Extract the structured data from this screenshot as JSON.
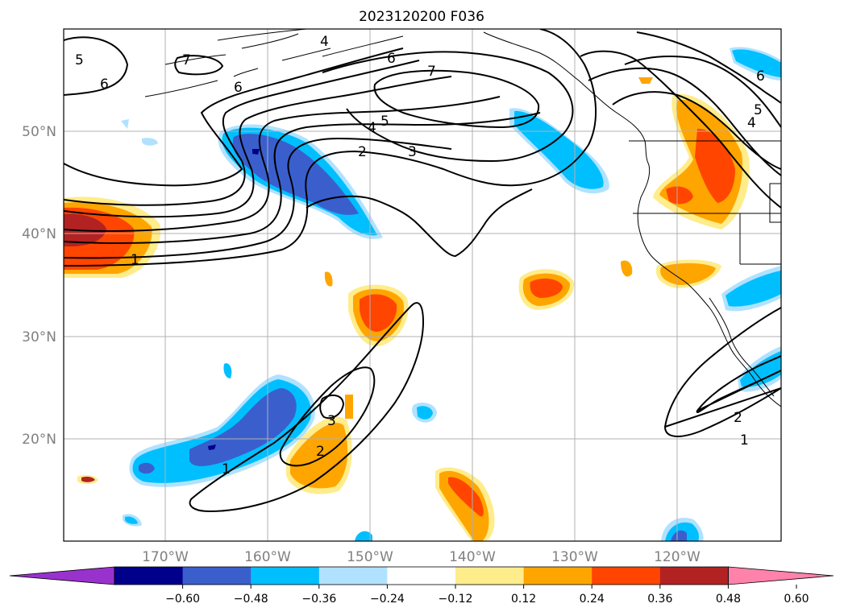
{
  "title": "2023120200 F036",
  "lat_labels": [
    "50°N",
    "40°N",
    "30°N",
    "20°N"
  ],
  "lon_labels": [
    "170°W",
    "160°W",
    "150°W",
    "140°W",
    "130°W",
    "120°W"
  ],
  "colorbar": {
    "tick_labels": [
      "−0.60",
      "−0.48",
      "−0.36",
      "−0.24",
      "−0.12",
      "0.12",
      "0.24",
      "0.36",
      "0.48",
      "0.60"
    ],
    "colors": [
      "#9932cc",
      "#00008b",
      "#3a5fcd",
      "#00bfff",
      "#b0e2ff",
      "#ffffff",
      "#ffec8b",
      "#ffa500",
      "#ff4500",
      "#b22222",
      "#ff82ab"
    ]
  },
  "contour_labels": {
    "l_north_4": "4",
    "l_north_6": "6",
    "l_north_7": "7",
    "l_nw_5": "5",
    "l_nw_6": "6",
    "l_nw_7": "7",
    "l_nw_6b": "6",
    "l_mid_4": "4",
    "l_mid_5": "5",
    "l_mid_2": "2",
    "l_mid_3": "3",
    "l_west_1": "1",
    "l_ne_6": "6",
    "l_ne_5": "5",
    "l_ne_4": "4",
    "l_haw_1": "1",
    "l_haw_2": "2",
    "l_haw_3": "3",
    "l_se_2": "2",
    "l_se_1": "1"
  }
}
